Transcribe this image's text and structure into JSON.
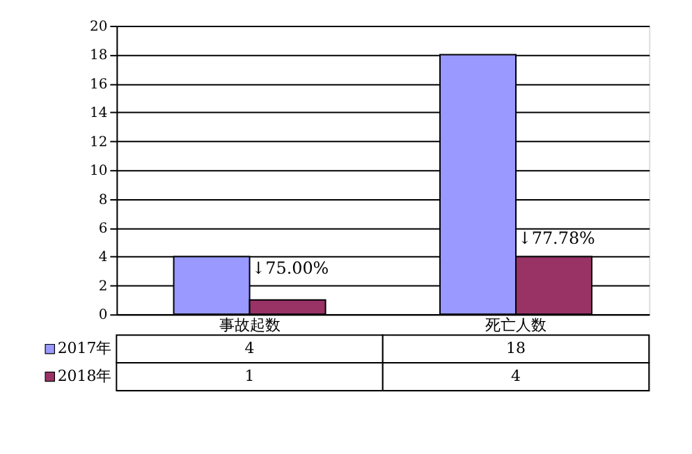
{
  "chart_data": {
    "type": "bar",
    "categories": [
      "事故起数",
      "死亡人数"
    ],
    "series": [
      {
        "name": "2017年",
        "color": "#9999ff",
        "values": [
          4,
          18
        ]
      },
      {
        "name": "2018年",
        "color": "#993366",
        "values": [
          1,
          4
        ]
      }
    ],
    "ylim": [
      0,
      20
    ],
    "yticks": [
      0,
      2,
      4,
      6,
      8,
      10,
      12,
      14,
      16,
      18,
      20
    ],
    "grid": "y",
    "data_labels": true,
    "legend": "bottom",
    "annotations": [
      {
        "text": "↓75.00%",
        "x": "事故起数",
        "y": 3.2
      },
      {
        "text": "↓77.78%",
        "x": "死亡人数",
        "y": 5.3
      }
    ]
  }
}
